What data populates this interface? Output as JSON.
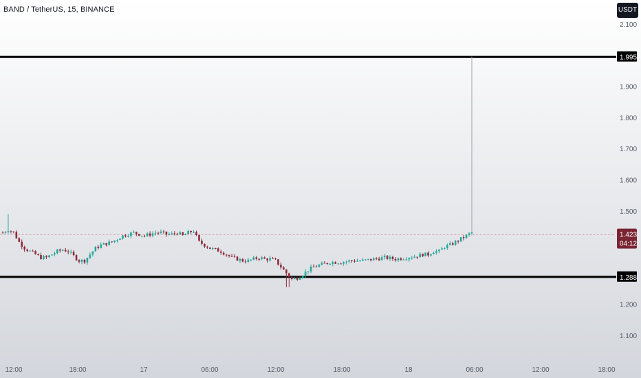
{
  "header": {
    "title": "BAND / TetherUS, 15, BINANCE",
    "currency": "USDT"
  },
  "price_badge": {
    "price": "1.423",
    "countdown": "04:12"
  },
  "colors": {
    "up": "#26a69a",
    "down": "#8b2b3c",
    "level_line": "#000000",
    "price_line": "#c77b86",
    "background_top": "#ffffff",
    "background_bottom": "#d3d6dc"
  },
  "chart_data": {
    "type": "candlestick",
    "title": "BAND / TetherUS, 15, BINANCE",
    "ylim": [
      1.04,
      2.14
    ],
    "y_ticks": [
      "2.100",
      "1.900",
      "1.800",
      "1.700",
      "1.600",
      "1.500",
      "1.200",
      "1.100"
    ],
    "x_ticks": [
      "12:00",
      "18:00",
      "17",
      "06:00",
      "12:00",
      "18:00",
      "18",
      "06:00",
      "12:00",
      "18:00"
    ],
    "horizontal_levels": [
      {
        "value": 1.995,
        "label": "1.995"
      },
      {
        "value": 1.288,
        "label": "1.288"
      }
    ],
    "last_price": 1.423,
    "grid": false,
    "price_path": [
      [
        0,
        1.43
      ],
      [
        2,
        1.44
      ],
      [
        4,
        1.43
      ],
      [
        6,
        1.4
      ],
      [
        8,
        1.38
      ],
      [
        10,
        1.37
      ],
      [
        12,
        1.36
      ],
      [
        14,
        1.35
      ],
      [
        16,
        1.35
      ],
      [
        18,
        1.36
      ],
      [
        20,
        1.37
      ],
      [
        22,
        1.375
      ],
      [
        24,
        1.37
      ],
      [
        26,
        1.355
      ],
      [
        28,
        1.34
      ],
      [
        30,
        1.34
      ],
      [
        32,
        1.36
      ],
      [
        34,
        1.38
      ],
      [
        36,
        1.39
      ],
      [
        38,
        1.395
      ],
      [
        40,
        1.4
      ],
      [
        42,
        1.41
      ],
      [
        44,
        1.42
      ],
      [
        46,
        1.425
      ],
      [
        48,
        1.43
      ],
      [
        50,
        1.425
      ],
      [
        52,
        1.42
      ],
      [
        54,
        1.425
      ],
      [
        56,
        1.43
      ],
      [
        58,
        1.43
      ],
      [
        60,
        1.425
      ],
      [
        62,
        1.425
      ],
      [
        64,
        1.43
      ],
      [
        66,
        1.42
      ],
      [
        68,
        1.43
      ],
      [
        70,
        1.435
      ],
      [
        72,
        1.4
      ],
      [
        74,
        1.39
      ],
      [
        76,
        1.38
      ],
      [
        78,
        1.375
      ],
      [
        80,
        1.37
      ],
      [
        82,
        1.36
      ],
      [
        84,
        1.35
      ],
      [
        86,
        1.345
      ],
      [
        88,
        1.34
      ],
      [
        90,
        1.34
      ],
      [
        92,
        1.345
      ],
      [
        94,
        1.35
      ],
      [
        96,
        1.345
      ],
      [
        98,
        1.345
      ],
      [
        100,
        1.34
      ],
      [
        102,
        1.32
      ],
      [
        104,
        1.3
      ],
      [
        106,
        1.28
      ],
      [
        108,
        1.285
      ],
      [
        110,
        1.295
      ],
      [
        112,
        1.31
      ],
      [
        114,
        1.32
      ],
      [
        116,
        1.325
      ],
      [
        118,
        1.33
      ],
      [
        120,
        1.335
      ],
      [
        124,
        1.335
      ],
      [
        128,
        1.34
      ],
      [
        132,
        1.34
      ],
      [
        136,
        1.345
      ],
      [
        140,
        1.35
      ],
      [
        144,
        1.345
      ],
      [
        148,
        1.35
      ],
      [
        152,
        1.355
      ],
      [
        154,
        1.36
      ],
      [
        156,
        1.36
      ],
      [
        158,
        1.37
      ],
      [
        160,
        1.37
      ],
      [
        162,
        1.385
      ],
      [
        164,
        1.39
      ],
      [
        166,
        1.4
      ],
      [
        168,
        1.41
      ],
      [
        170,
        1.42
      ],
      [
        172,
        1.43
      ]
    ],
    "spike": {
      "index": 172,
      "high": 1.995
    }
  }
}
